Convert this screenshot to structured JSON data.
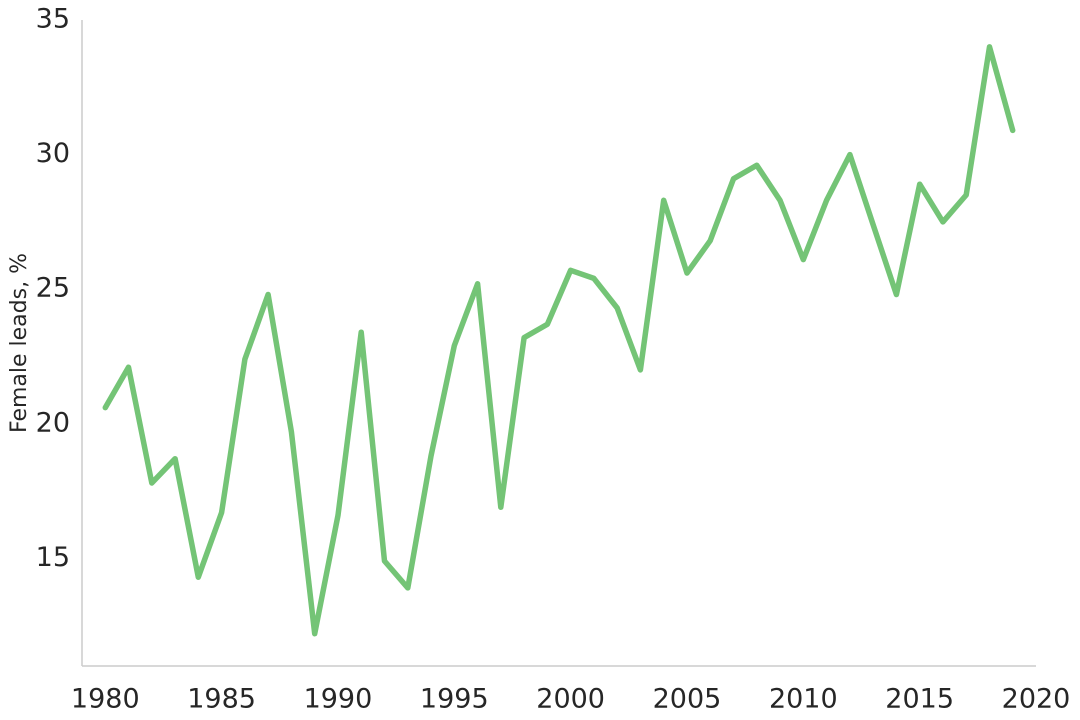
{
  "chart_data": {
    "type": "line",
    "title": "",
    "xlabel": "",
    "ylabel": "Female leads, %",
    "xlim": [
      1979,
      2020
    ],
    "ylim": [
      11,
      35
    ],
    "xticks": [
      1980,
      1985,
      1990,
      1995,
      2000,
      2005,
      2010,
      2015,
      2020
    ],
    "yticks": [
      15,
      20,
      25,
      30,
      35
    ],
    "grid": false,
    "legend": "none",
    "series": [
      {
        "color": "#74c476",
        "x": [
          1980,
          1981,
          1982,
          1983,
          1984,
          1985,
          1986,
          1987,
          1988,
          1989,
          1990,
          1991,
          1992,
          1993,
          1994,
          1995,
          1996,
          1997,
          1998,
          1999,
          2000,
          2001,
          2002,
          2003,
          2004,
          2005,
          2006,
          2007,
          2008,
          2009,
          2010,
          2011,
          2012,
          2013,
          2014,
          2015,
          2016,
          2017,
          2018,
          2019
        ],
        "y": [
          20.6,
          22.1,
          17.8,
          18.7,
          14.3,
          16.7,
          22.4,
          24.8,
          19.7,
          12.2,
          16.6,
          23.4,
          14.9,
          13.9,
          18.8,
          22.9,
          25.2,
          16.9,
          23.2,
          23.7,
          25.7,
          25.4,
          24.3,
          22.0,
          28.3,
          25.6,
          26.8,
          29.1,
          29.6,
          28.3,
          26.1,
          28.3,
          30.0,
          27.4,
          24.8,
          28.9,
          27.5,
          28.5,
          34.0,
          30.9
        ]
      }
    ]
  }
}
